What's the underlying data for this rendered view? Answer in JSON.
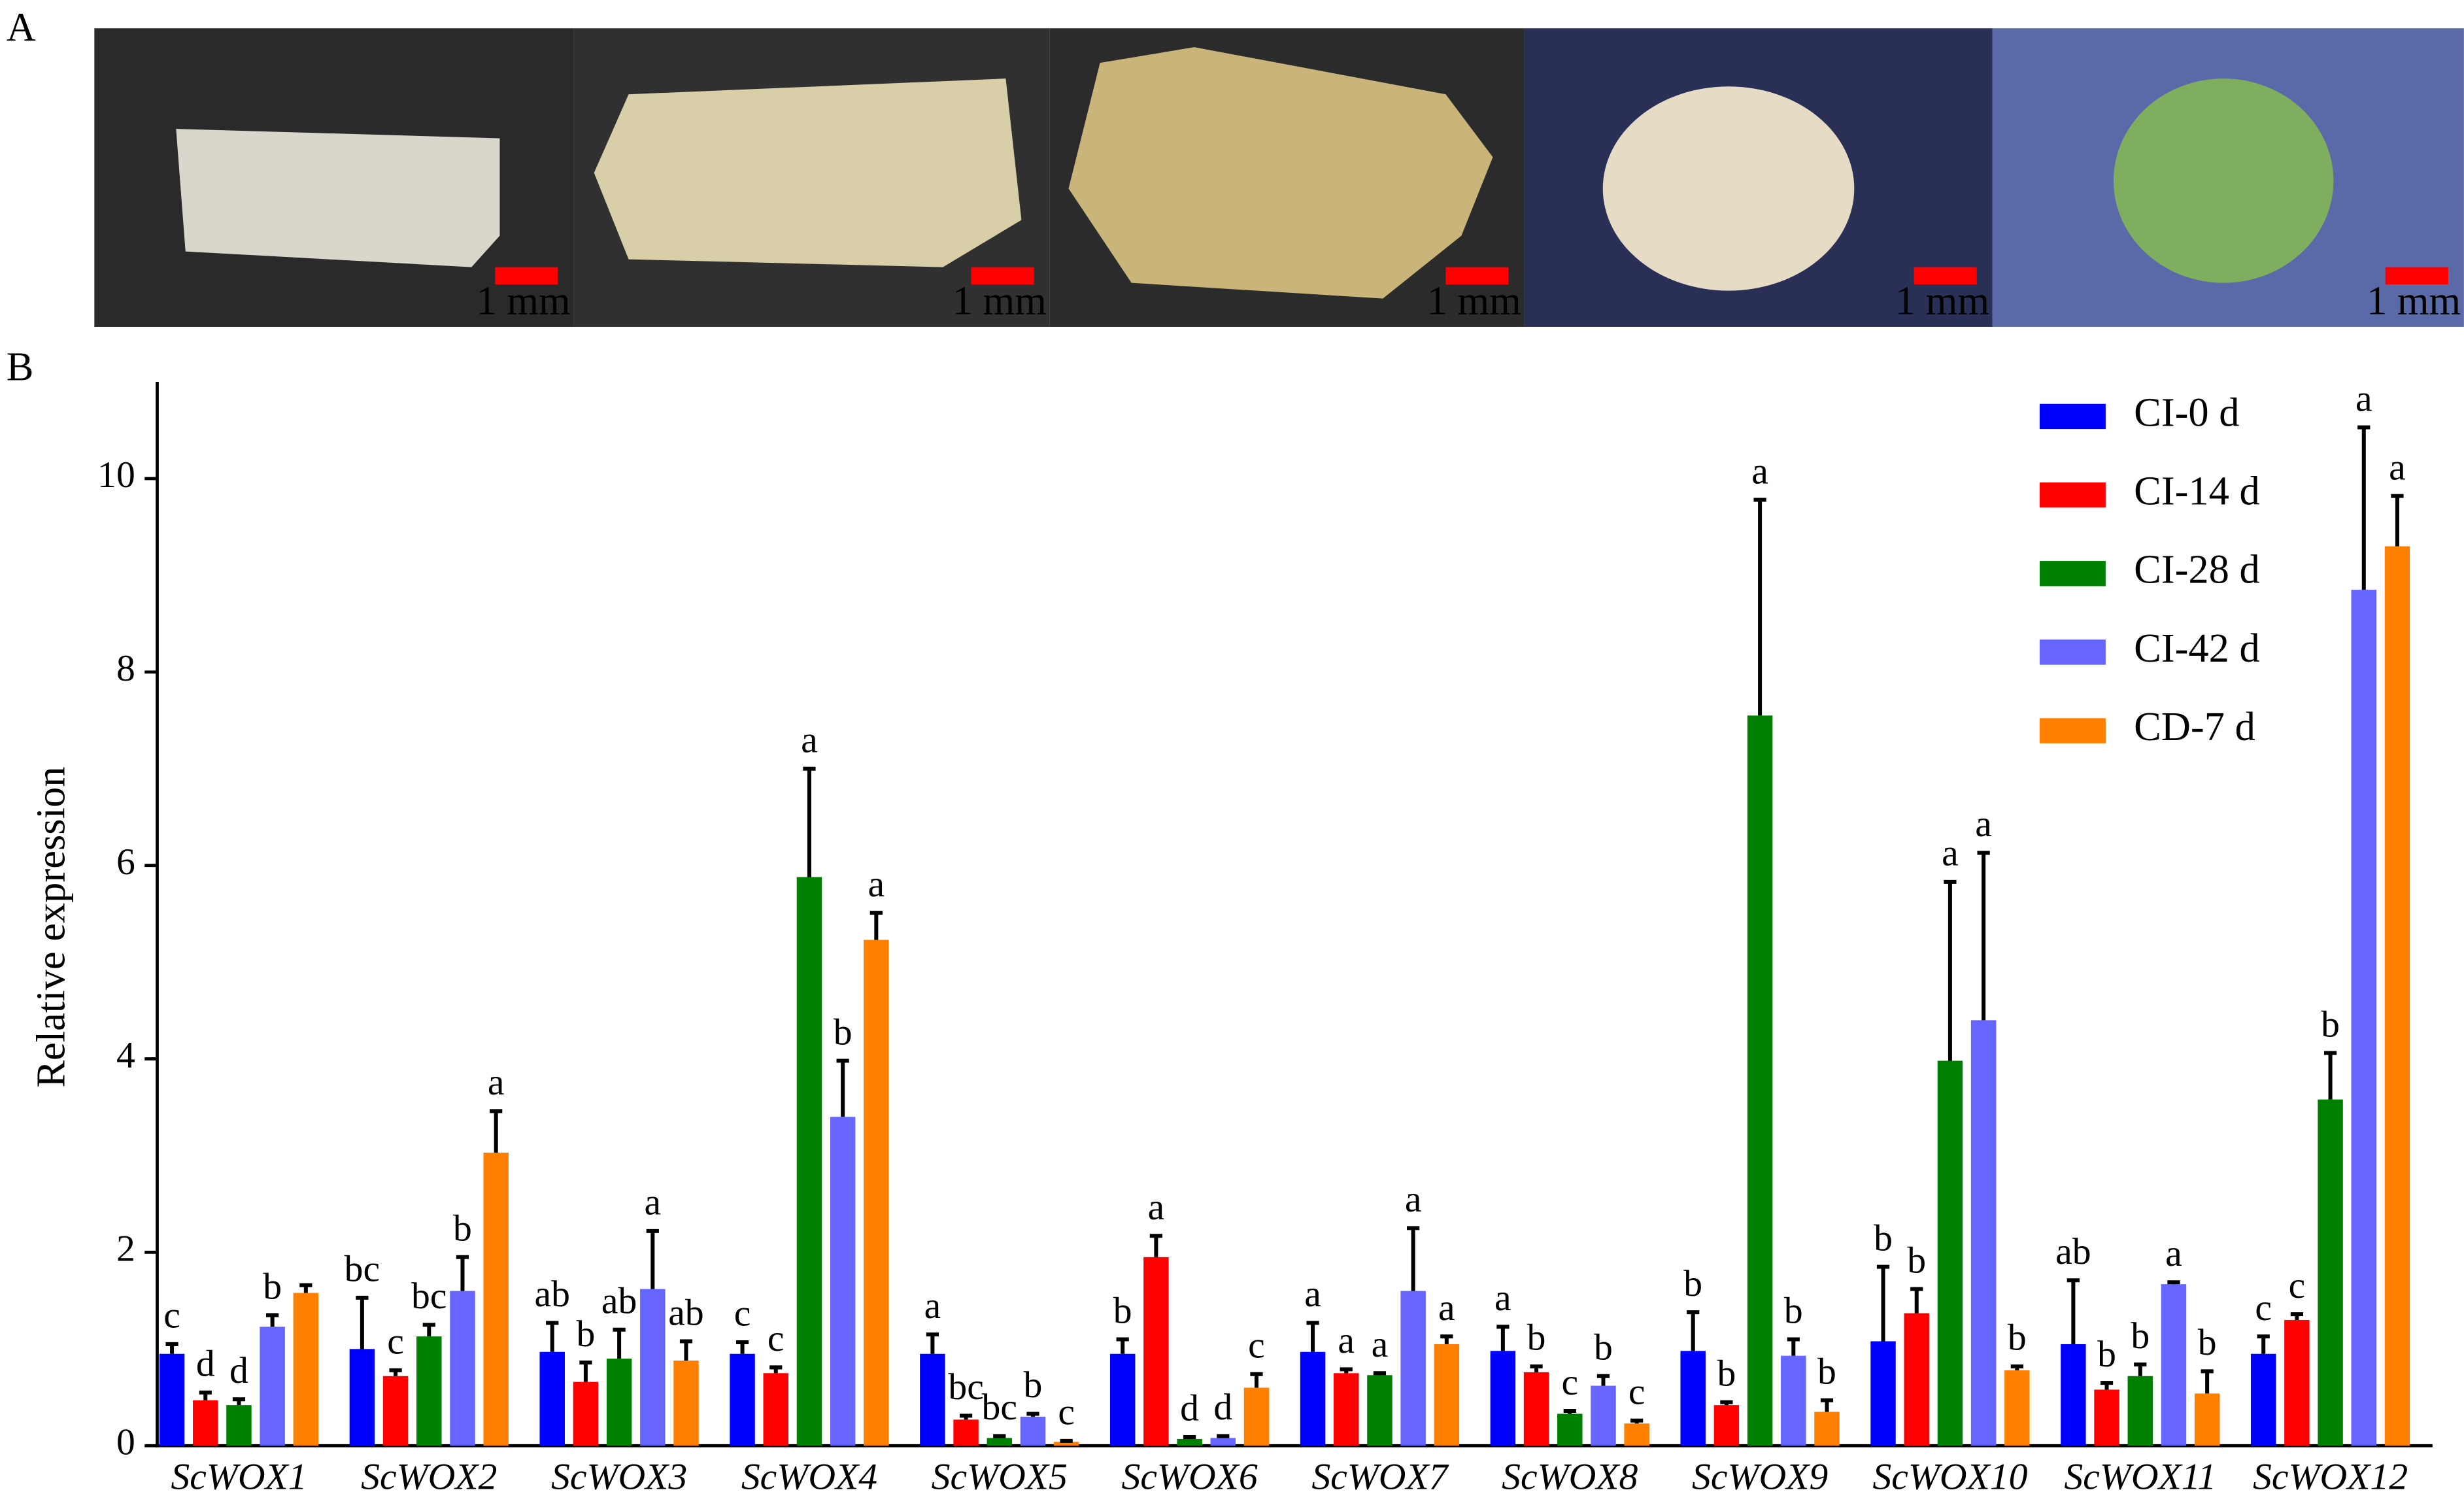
{
  "panel_labels": [
    "A",
    "B"
  ],
  "panel_a": {
    "scale_labels": [
      "1 mm",
      "1 mm",
      "1 mm",
      "1 mm",
      "1 mm"
    ]
  },
  "chart_data": {
    "type": "bar",
    "y_label": "Relative expression",
    "categories": [
      "ScWOX1",
      "ScWOX2",
      "ScWOX3",
      "ScWOX4",
      "ScWOX5",
      "ScWOX6",
      "ScWOX7",
      "ScWOX8",
      "ScWOX9",
      "ScWOX10",
      "ScWOX11",
      "ScWOX12"
    ],
    "ylim": [
      0,
      11
    ],
    "yticks": [
      0,
      2,
      4,
      6,
      8,
      10
    ],
    "legend": "top-right",
    "series": [
      {
        "name": "CI-0 d",
        "color": "#0000ff",
        "values": [
          0.95,
          1.0,
          0.97,
          0.95,
          0.95,
          0.95,
          0.97,
          0.98,
          0.98,
          1.08,
          1.05,
          0.95
        ],
        "errors": [
          0.1,
          0.53,
          0.3,
          0.12,
          0.2,
          0.15,
          0.3,
          0.25,
          0.4,
          0.77,
          0.66,
          0.18
        ],
        "letters": [
          "c",
          "bc",
          "ab",
          "c",
          "a",
          "b",
          "a",
          "a",
          "b",
          "b",
          "ab",
          "c"
        ]
      },
      {
        "name": "CI-14 d",
        "color": "#ff0000",
        "values": [
          0.47,
          0.72,
          0.66,
          0.75,
          0.27,
          1.95,
          0.75,
          0.76,
          0.42,
          1.37,
          0.58,
          1.3
        ],
        "errors": [
          0.08,
          0.06,
          0.2,
          0.06,
          0.04,
          0.22,
          0.04,
          0.06,
          0.03,
          0.25,
          0.07,
          0.06
        ],
        "letters": [
          "d",
          "c",
          "b",
          "c",
          "bc",
          "a",
          "a",
          "b",
          "b",
          "b",
          "b",
          "c"
        ]
      },
      {
        "name": "CI-28 d",
        "color": "#008000",
        "values": [
          0.42,
          1.13,
          0.9,
          5.88,
          0.08,
          0.07,
          0.73,
          0.33,
          7.55,
          3.98,
          0.72,
          3.58
        ],
        "errors": [
          0.06,
          0.12,
          0.3,
          1.12,
          0.02,
          0.02,
          0.02,
          0.03,
          2.23,
          1.85,
          0.12,
          0.48
        ],
        "letters": [
          "d",
          "bc",
          "ab",
          "a",
          "bc",
          "d",
          "a",
          "c",
          "a",
          "a",
          "b",
          "b"
        ]
      },
      {
        "name": "CI-42 d",
        "color": "#6666ff",
        "values": [
          1.23,
          1.6,
          1.62,
          3.4,
          0.3,
          0.08,
          1.6,
          0.62,
          0.93,
          4.4,
          1.67,
          8.85
        ],
        "errors": [
          0.12,
          0.35,
          0.6,
          0.58,
          0.03,
          0.02,
          0.65,
          0.1,
          0.17,
          1.73,
          0.02,
          1.68
        ],
        "letters": [
          "b",
          "b",
          "a",
          "b",
          "b",
          "d",
          "a",
          "b",
          "b",
          "a",
          "a",
          "a"
        ]
      },
      {
        "name": "CD-7 d",
        "color": "#ff8000",
        "values": [
          1.58,
          3.03,
          0.88,
          5.23,
          0.04,
          0.6,
          1.05,
          0.23,
          0.35,
          0.78,
          0.54,
          9.3
        ],
        "errors": [
          0.08,
          0.43,
          0.2,
          0.28,
          0.01,
          0.14,
          0.08,
          0.03,
          0.12,
          0.04,
          0.23,
          0.52
        ],
        "letters": [
          null,
          "a",
          "ab",
          "a",
          "c",
          "c",
          "a",
          "c",
          "b",
          "b",
          "b",
          "a"
        ]
      }
    ]
  }
}
